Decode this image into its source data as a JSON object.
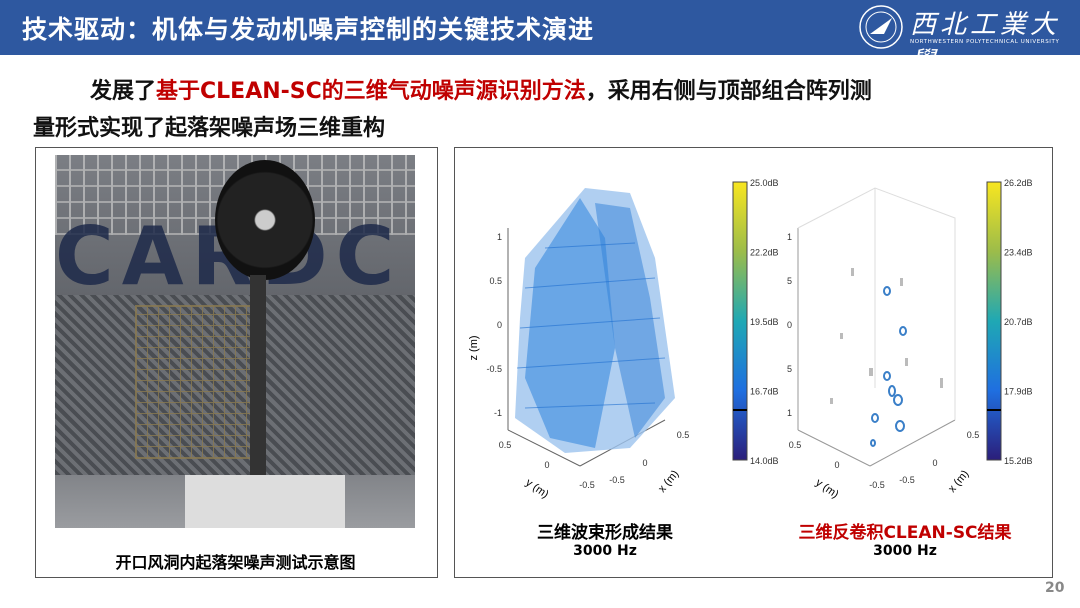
{
  "header": {
    "title": "技术驱动：机体与发动机噪声控制的关键技术演进",
    "logo": {
      "name_cn": "西北工業大學",
      "name_en": "NORTHWESTERN POLYTECHNICAL UNIVERSITY"
    }
  },
  "subtitle": {
    "part1": "发展了",
    "highlight": "基于CLEAN-SC的三维气动噪声源识别方法",
    "part2": "，采用右侧与顶部组合阵列测",
    "line2": "量形式实现了起落架噪声场三维重构"
  },
  "left_panel": {
    "caption": "开口风洞内起落架噪声测试示意图",
    "photo_wall_text": "CARDC"
  },
  "plots": [
    {
      "caption": "三维波束形成结果",
      "freq": "3000 Hz",
      "zlabel": "z (m)",
      "ylabel": "y (m)",
      "xlabel": "x (m)",
      "z_ticks": [
        "1",
        "0.5",
        "0",
        "-0.5",
        "-1"
      ],
      "y_ticks": [
        "0.5",
        "0",
        "-0.5"
      ],
      "x_ticks": [
        "-0.5",
        "0",
        "0.5"
      ],
      "colorbar": [
        "25.0dB",
        "22.2dB",
        "19.5dB",
        "16.7dB",
        "14.0dB"
      ]
    },
    {
      "caption": "三维反卷积CLEAN-SC结果",
      "freq": "3000 Hz",
      "ylabel": "y (m)",
      "xlabel": "x (m)",
      "z_ticks": [
        "1",
        "5",
        "0",
        "5",
        "1"
      ],
      "y_ticks": [
        "0.5",
        "0",
        "-0.5"
      ],
      "x_ticks": [
        "-0.5",
        "0",
        "0.5"
      ],
      "colorbar": [
        "26.2dB",
        "23.4dB",
        "20.7dB",
        "17.9dB",
        "15.2dB"
      ]
    }
  ],
  "colors": {
    "header": "#2e58a0",
    "highlight": "#c00000"
  },
  "page_number": "20"
}
